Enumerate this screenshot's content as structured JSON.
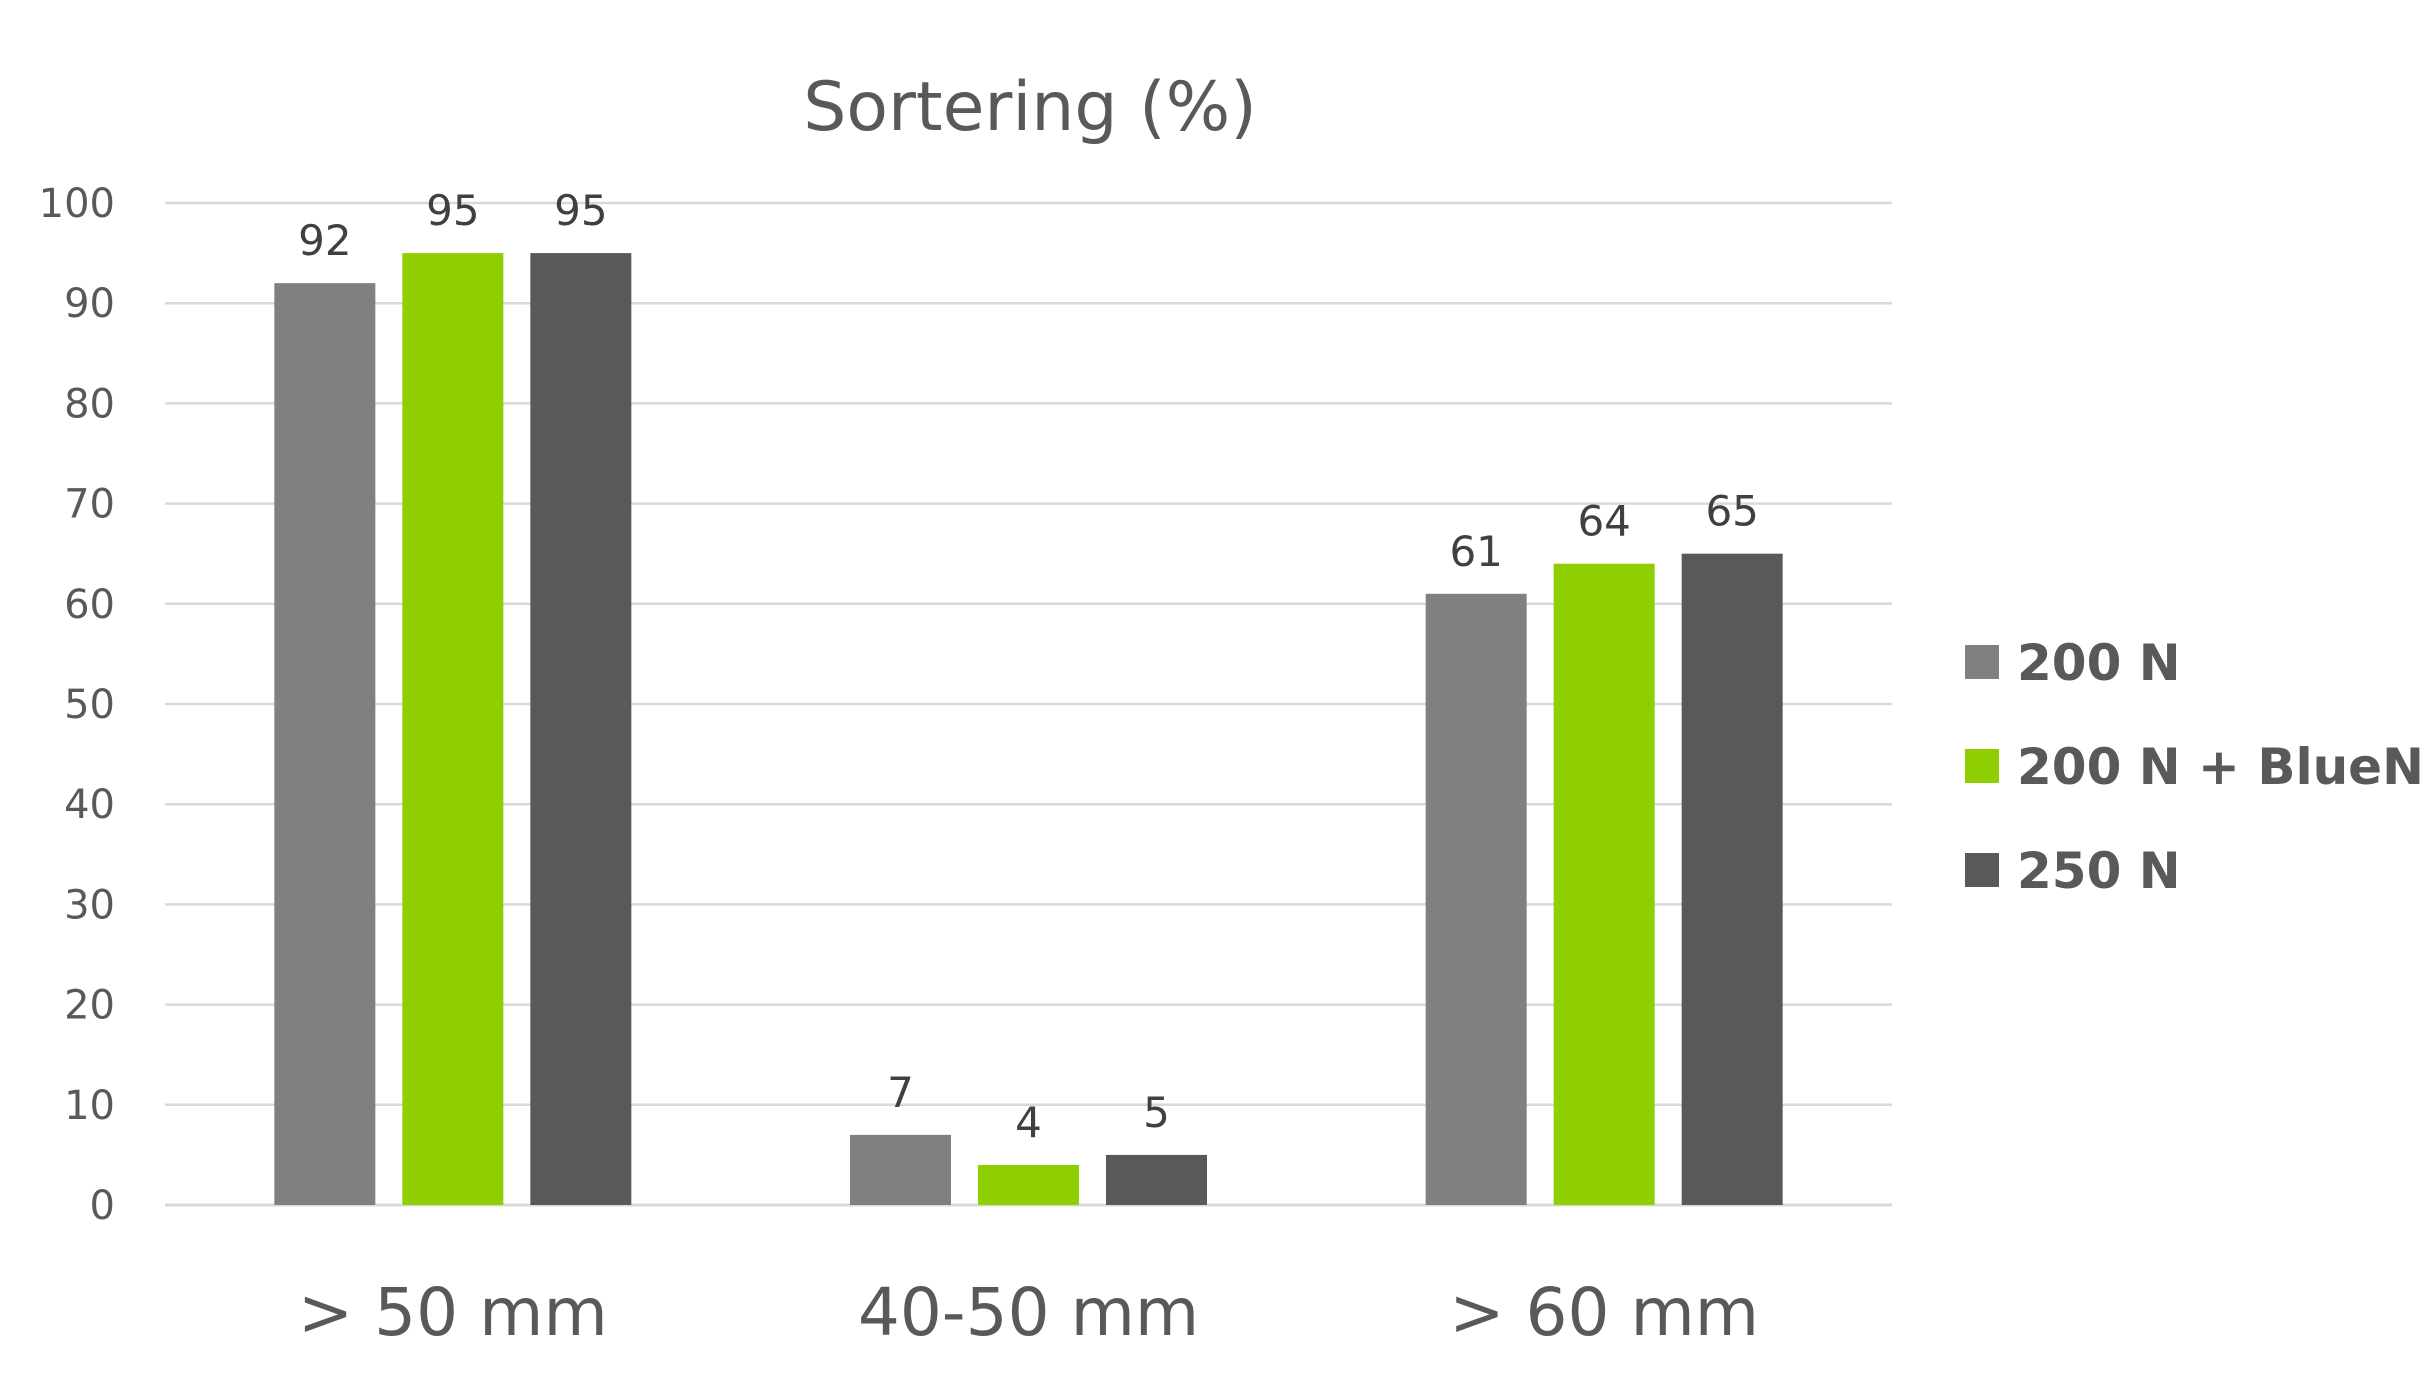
{
  "chart_data": {
    "type": "bar",
    "title": "Sortering (%)",
    "categories": [
      "> 50 mm",
      "40-50 mm",
      "> 60 mm"
    ],
    "series": [
      {
        "name": "200 N",
        "values": [
          92,
          7,
          61
        ],
        "color": "#808080"
      },
      {
        "name": "200 N + BlueN",
        "values": [
          95,
          4,
          64
        ],
        "color": "#8fce00"
      },
      {
        "name": "250 N",
        "values": [
          95,
          5,
          65
        ],
        "color": "#595959"
      }
    ],
    "ylim": [
      0,
      100
    ],
    "yticks": [
      0,
      10,
      20,
      30,
      40,
      50,
      60,
      70,
      80,
      90,
      100
    ],
    "xlabel": "",
    "ylabel": "",
    "grid": true,
    "legend": "right",
    "data_labels": true
  }
}
